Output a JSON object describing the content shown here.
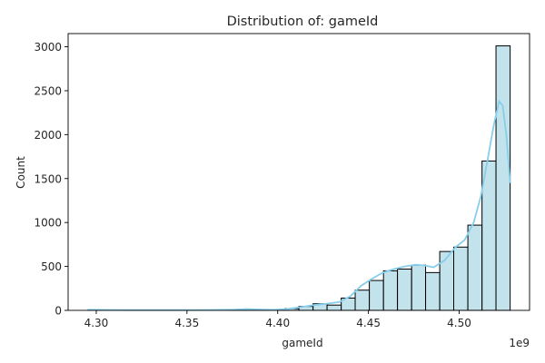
{
  "chart_data": {
    "type": "bar",
    "title": "Distribution of: gameId",
    "xlabel": "gameId",
    "ylabel": "Count",
    "x_offset_label": "1e9",
    "xlim": [
      4.2845,
      4.5388
    ],
    "ylim": [
      0,
      3150
    ],
    "x_ticks": [
      4.3,
      4.35,
      4.4,
      4.45,
      4.5
    ],
    "x_tick_labels": [
      "4.30",
      "4.35",
      "4.40",
      "4.45",
      "4.50"
    ],
    "y_ticks": [
      0,
      500,
      1000,
      1500,
      2000,
      2500,
      3000
    ],
    "y_tick_labels": [
      "0",
      "500",
      "1000",
      "1500",
      "2000",
      "2500",
      "3000"
    ],
    "grid": false,
    "bins": [
      {
        "x0": 4.2953,
        "x1": 4.3031,
        "count": 1
      },
      {
        "x0": 4.3031,
        "x1": 4.3108,
        "count": 0
      },
      {
        "x0": 4.3108,
        "x1": 4.3186,
        "count": 0
      },
      {
        "x0": 4.3186,
        "x1": 4.3264,
        "count": 0
      },
      {
        "x0": 4.3264,
        "x1": 4.3341,
        "count": 0
      },
      {
        "x0": 4.3341,
        "x1": 4.3419,
        "count": 0
      },
      {
        "x0": 4.3419,
        "x1": 4.3496,
        "count": 0
      },
      {
        "x0": 4.3496,
        "x1": 4.3574,
        "count": 0
      },
      {
        "x0": 4.3574,
        "x1": 4.3652,
        "count": 0
      },
      {
        "x0": 4.3652,
        "x1": 4.3729,
        "count": 0
      },
      {
        "x0": 4.3729,
        "x1": 4.3807,
        "count": 2
      },
      {
        "x0": 4.3807,
        "x1": 4.3884,
        "count": 10
      },
      {
        "x0": 4.3884,
        "x1": 4.3962,
        "count": 3
      },
      {
        "x0": 4.3962,
        "x1": 4.4039,
        "count": 5
      },
      {
        "x0": 4.4039,
        "x1": 4.4117,
        "count": 20
      },
      {
        "x0": 4.4117,
        "x1": 4.4195,
        "count": 45
      },
      {
        "x0": 4.4195,
        "x1": 4.4272,
        "count": 75
      },
      {
        "x0": 4.4272,
        "x1": 4.435,
        "count": 60
      },
      {
        "x0": 4.435,
        "x1": 4.4427,
        "count": 140
      },
      {
        "x0": 4.4427,
        "x1": 4.4505,
        "count": 230
      },
      {
        "x0": 4.4505,
        "x1": 4.4583,
        "count": 340
      },
      {
        "x0": 4.4583,
        "x1": 4.466,
        "count": 450
      },
      {
        "x0": 4.466,
        "x1": 4.4738,
        "count": 470
      },
      {
        "x0": 4.4738,
        "x1": 4.4815,
        "count": 515
      },
      {
        "x0": 4.4815,
        "x1": 4.4893,
        "count": 430
      },
      {
        "x0": 4.4893,
        "x1": 4.497,
        "count": 670
      },
      {
        "x0": 4.497,
        "x1": 4.5048,
        "count": 720
      },
      {
        "x0": 4.5048,
        "x1": 4.5126,
        "count": 970
      },
      {
        "x0": 4.5126,
        "x1": 4.5203,
        "count": 1700
      },
      {
        "x0": 4.5203,
        "x1": 4.5281,
        "count": 3010
      }
    ],
    "kde": {
      "x": [
        4.2953,
        4.305,
        4.32,
        4.34,
        4.36,
        4.375,
        4.383,
        4.39,
        4.398,
        4.405,
        4.412,
        4.42,
        4.427,
        4.434,
        4.44,
        4.446,
        4.452,
        4.458,
        4.464,
        4.47,
        4.476,
        4.481,
        4.486,
        4.492,
        4.498,
        4.503,
        4.508,
        4.512,
        4.516,
        4.519,
        4.522,
        4.524,
        4.526,
        4.5281
      ],
      "y": [
        8,
        5,
        3,
        3,
        4,
        8,
        15,
        10,
        6,
        15,
        35,
        60,
        75,
        95,
        160,
        280,
        360,
        430,
        470,
        500,
        520,
        510,
        490,
        570,
        720,
        800,
        1000,
        1300,
        1750,
        2100,
        2380,
        2330,
        2000,
        1450
      ]
    },
    "colors": {
      "bar_fill": "#add8e6",
      "bar_edge": "#000000",
      "kde_line": "#87ceeb"
    }
  }
}
